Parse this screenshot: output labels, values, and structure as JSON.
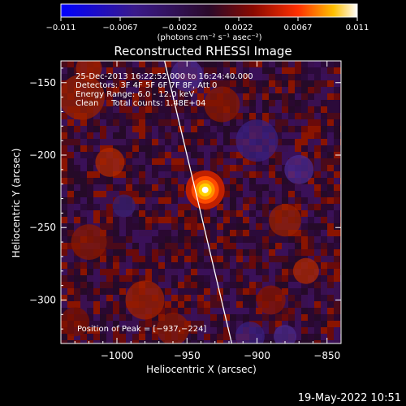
{
  "chart_data": {
    "type": "heatmap",
    "title": "Reconstructed RHESSI Image",
    "colorbar": {
      "ticks": [
        "−0.011",
        "−0.0067",
        "−0.0022",
        "0.0022",
        "0.0067",
        "0.011"
      ],
      "range": [
        -0.011,
        0.011
      ],
      "unit_label": "(photons cm⁻² s⁻¹ asec⁻²)",
      "colormap": "blue-purple-red-yellow-white"
    },
    "info_lines": [
      "25-Dec-2013 16:22:52.000 to 16:24:40.000",
      "Detectors: 3F 4F 5F 6F 7F 8F, Att 0",
      "Energy Range: 6.0 - 12.0 keV",
      "Clean     Total counts: 1.48E+04"
    ],
    "peak_label": "Position of Peak = [−937,−224]",
    "peak": {
      "x": -937,
      "y": -224
    },
    "xlabel": "Heliocentric X (arcsec)",
    "ylabel": "Heliocentric Y (arcsec)",
    "xlim": [
      -1040,
      -840
    ],
    "ylim": [
      -330,
      -135
    ],
    "xticks": [
      {
        "value": -1000,
        "label": "−1000"
      },
      {
        "value": -950,
        "label": "−950"
      },
      {
        "value": -900,
        "label": "−900"
      },
      {
        "value": -850,
        "label": "−850"
      }
    ],
    "yticks": [
      {
        "value": -150,
        "label": "−150"
      },
      {
        "value": -200,
        "label": "−200"
      },
      {
        "value": -250,
        "label": "−250"
      },
      {
        "value": -300,
        "label": "−300"
      }
    ],
    "limb_line": [
      [
        -966,
        -135
      ],
      [
        -918,
        -330
      ]
    ],
    "timestamp": "19-May-2022 10:51"
  }
}
